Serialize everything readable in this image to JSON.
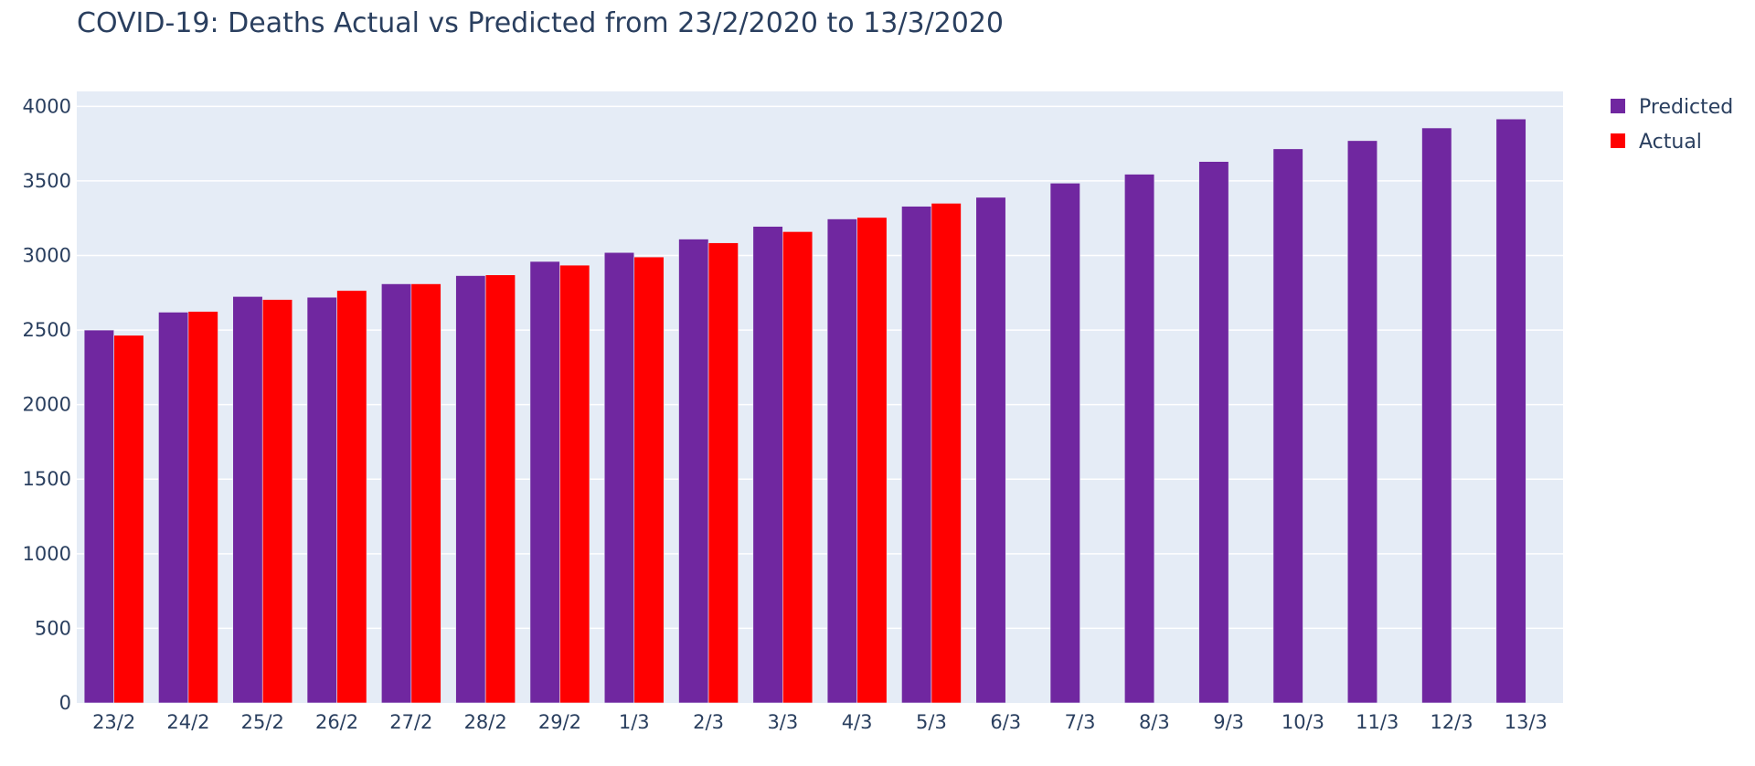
{
  "chart_data": {
    "type": "bar",
    "title": "COVID-19: Deaths Actual vs Predicted from 23/2/2020 to 13/3/2020",
    "xlabel": "",
    "ylabel": "",
    "ylim": [
      0,
      4100
    ],
    "yticks": [
      0,
      500,
      1000,
      1500,
      2000,
      2500,
      3000,
      3500,
      4000
    ],
    "grid": true,
    "legend_position": "top-right",
    "categories": [
      "23/2",
      "24/2",
      "25/2",
      "26/2",
      "27/2",
      "28/2",
      "29/2",
      "1/3",
      "2/3",
      "3/3",
      "4/3",
      "5/3",
      "6/3",
      "7/3",
      "8/3",
      "9/3",
      "10/3",
      "11/3",
      "12/3",
      "13/3"
    ],
    "series": [
      {
        "name": "Predicted",
        "color": "#7027a0",
        "values": [
          2500,
          2620,
          2725,
          2720,
          2810,
          2865,
          2960,
          3020,
          3110,
          3195,
          3245,
          3330,
          3390,
          3485,
          3545,
          3630,
          3715,
          3770,
          3855,
          3915
        ]
      },
      {
        "name": "Actual",
        "color": "#ff0000",
        "values": [
          2465,
          2625,
          2705,
          2765,
          2810,
          2870,
          2935,
          2990,
          3085,
          3160,
          3255,
          3350,
          null,
          null,
          null,
          null,
          null,
          null,
          null,
          null
        ]
      }
    ]
  }
}
